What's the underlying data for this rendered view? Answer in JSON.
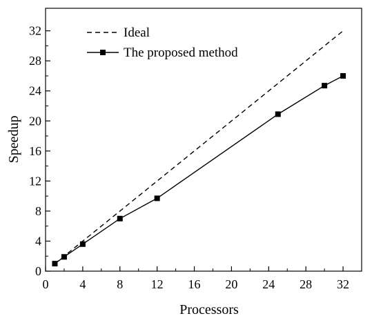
{
  "chart_data": {
    "type": "line",
    "xlabel": "Processors",
    "ylabel": "Speedup",
    "xlim": [
      0,
      34
    ],
    "ylim": [
      0,
      35
    ],
    "x_ticks": [
      0,
      4,
      8,
      12,
      16,
      20,
      24,
      28,
      32
    ],
    "y_ticks": [
      0,
      4,
      8,
      12,
      16,
      20,
      24,
      28,
      32
    ],
    "grid": false,
    "legend": "top-left",
    "series": [
      {
        "name": "Ideal",
        "style": "dashed",
        "color": "#000000",
        "x": [
          1,
          32
        ],
        "y": [
          1,
          32
        ]
      },
      {
        "name": "The proposed method",
        "style": "solid-square-markers",
        "color": "#000000",
        "x": [
          1,
          2,
          4,
          8,
          12,
          25,
          30,
          32
        ],
        "y": [
          1.0,
          1.9,
          3.6,
          7.0,
          9.7,
          20.9,
          24.7,
          26.0
        ]
      }
    ]
  }
}
